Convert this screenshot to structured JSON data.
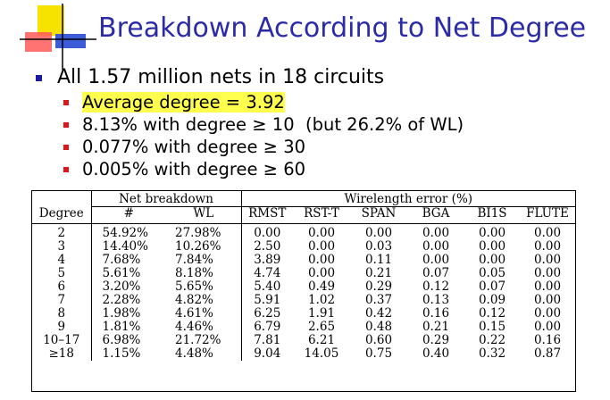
{
  "title": "Breakdown According to Net Degree",
  "bullets": {
    "main": "All 1.57 million nets in 18 circuits",
    "subs": [
      "Average degree = 3.92",
      "8.13% with degree ≥ 10  (but 26.2% of WL)",
      "0.077% with degree ≥ 30",
      "0.005% with degree ≥ 60"
    ]
  },
  "table": {
    "group_headers": {
      "net": "Net breakdown",
      "wl": "Wirelength error (%)"
    },
    "columns": [
      "Degree",
      "#",
      "WL",
      "RMST",
      "RST-T",
      "SPAN",
      "BGA",
      "BI1S",
      "FLUTE"
    ],
    "rows": [
      [
        "2",
        "54.92%",
        "27.98%",
        "0.00",
        "0.00",
        "0.00",
        "0.00",
        "0.00",
        "0.00"
      ],
      [
        "3",
        "14.40%",
        "10.26%",
        "2.50",
        "0.00",
        "0.03",
        "0.00",
        "0.00",
        "0.00"
      ],
      [
        "4",
        "7.68%",
        "7.84%",
        "3.89",
        "0.00",
        "0.11",
        "0.00",
        "0.00",
        "0.00"
      ],
      [
        "5",
        "5.61%",
        "8.18%",
        "4.74",
        "0.00",
        "0.21",
        "0.07",
        "0.05",
        "0.00"
      ],
      [
        "6",
        "3.20%",
        "5.65%",
        "5.40",
        "0.49",
        "0.29",
        "0.12",
        "0.07",
        "0.00"
      ],
      [
        "7",
        "2.28%",
        "4.82%",
        "5.91",
        "1.02",
        "0.37",
        "0.13",
        "0.09",
        "0.00"
      ],
      [
        "8",
        "1.98%",
        "4.61%",
        "6.25",
        "1.91",
        "0.42",
        "0.16",
        "0.12",
        "0.00"
      ],
      [
        "9",
        "1.81%",
        "4.46%",
        "6.79",
        "2.65",
        "0.48",
        "0.21",
        "0.15",
        "0.00"
      ],
      [
        "10–17",
        "6.98%",
        "21.72%",
        "7.81",
        "6.21",
        "0.60",
        "0.29",
        "0.22",
        "0.16"
      ],
      [
        "≥18",
        "1.15%",
        "4.48%",
        "9.04",
        "14.05",
        "0.75",
        "0.40",
        "0.32",
        "0.87"
      ]
    ]
  },
  "colors": {
    "title": "#2b2ba8",
    "bullet_main": "#1a1aa6",
    "bullet_sub": "#e0141b",
    "highlight": "#ffff4d"
  }
}
